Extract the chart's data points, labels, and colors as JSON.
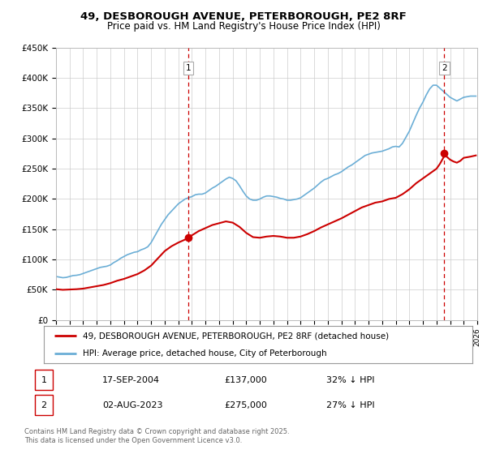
{
  "title": "49, DESBOROUGH AVENUE, PETERBOROUGH, PE2 8RF",
  "subtitle": "Price paid vs. HM Land Registry's House Price Index (HPI)",
  "title_fontsize": 9.5,
  "subtitle_fontsize": 8.5,
  "xlim_start": 1995.0,
  "xlim_end": 2026.0,
  "ylim_min": 0,
  "ylim_max": 450000,
  "yticks": [
    0,
    50000,
    100000,
    150000,
    200000,
    250000,
    300000,
    350000,
    400000,
    450000
  ],
  "ytick_labels": [
    "£0",
    "£50K",
    "£100K",
    "£150K",
    "£200K",
    "£250K",
    "£300K",
    "£350K",
    "£400K",
    "£450K"
  ],
  "hpi_color": "#6baed6",
  "price_color": "#cc0000",
  "vline_color": "#cc0000",
  "grid_color": "#cccccc",
  "background_color": "#ffffff",
  "sale1_date": 2004.72,
  "sale1_price": 137000,
  "sale1_label": "1",
  "sale2_date": 2023.58,
  "sale2_price": 275000,
  "sale2_label": "2",
  "legend_label_price": "49, DESBOROUGH AVENUE, PETERBOROUGH, PE2 8RF (detached house)",
  "legend_label_hpi": "HPI: Average price, detached house, City of Peterborough",
  "table_row1": [
    "1",
    "17-SEP-2004",
    "£137,000",
    "32% ↓ HPI"
  ],
  "table_row2": [
    "2",
    "02-AUG-2023",
    "£275,000",
    "27% ↓ HPI"
  ],
  "footnote": "Contains HM Land Registry data © Crown copyright and database right 2025.\nThis data is licensed under the Open Government Licence v3.0.",
  "hpi_data": [
    [
      1995.0,
      72000
    ],
    [
      1995.25,
      71000
    ],
    [
      1995.5,
      70000
    ],
    [
      1995.75,
      70500
    ],
    [
      1996.0,
      72000
    ],
    [
      1996.25,
      73500
    ],
    [
      1996.5,
      74000
    ],
    [
      1996.75,
      75000
    ],
    [
      1997.0,
      77000
    ],
    [
      1997.25,
      79000
    ],
    [
      1997.5,
      81000
    ],
    [
      1997.75,
      83000
    ],
    [
      1998.0,
      85000
    ],
    [
      1998.25,
      87000
    ],
    [
      1998.5,
      88000
    ],
    [
      1998.75,
      89000
    ],
    [
      1999.0,
      91000
    ],
    [
      1999.25,
      95000
    ],
    [
      1999.5,
      98000
    ],
    [
      1999.75,
      102000
    ],
    [
      2000.0,
      105000
    ],
    [
      2000.25,
      108000
    ],
    [
      2000.5,
      110000
    ],
    [
      2000.75,
      112000
    ],
    [
      2001.0,
      113000
    ],
    [
      2001.25,
      116000
    ],
    [
      2001.5,
      118000
    ],
    [
      2001.75,
      121000
    ],
    [
      2002.0,
      128000
    ],
    [
      2002.25,
      138000
    ],
    [
      2002.5,
      148000
    ],
    [
      2002.75,
      158000
    ],
    [
      2003.0,
      166000
    ],
    [
      2003.25,
      174000
    ],
    [
      2003.5,
      180000
    ],
    [
      2003.75,
      186000
    ],
    [
      2004.0,
      192000
    ],
    [
      2004.25,
      196000
    ],
    [
      2004.5,
      200000
    ],
    [
      2004.75,
      202000
    ],
    [
      2005.0,
      204000
    ],
    [
      2005.25,
      207000
    ],
    [
      2005.5,
      208000
    ],
    [
      2005.75,
      208000
    ],
    [
      2006.0,
      210000
    ],
    [
      2006.25,
      214000
    ],
    [
      2006.5,
      218000
    ],
    [
      2006.75,
      221000
    ],
    [
      2007.0,
      225000
    ],
    [
      2007.25,
      229000
    ],
    [
      2007.5,
      233000
    ],
    [
      2007.75,
      236000
    ],
    [
      2008.0,
      234000
    ],
    [
      2008.25,
      230000
    ],
    [
      2008.5,
      222000
    ],
    [
      2008.75,
      213000
    ],
    [
      2009.0,
      205000
    ],
    [
      2009.25,
      200000
    ],
    [
      2009.5,
      198000
    ],
    [
      2009.75,
      198000
    ],
    [
      2010.0,
      200000
    ],
    [
      2010.25,
      203000
    ],
    [
      2010.5,
      205000
    ],
    [
      2010.75,
      205000
    ],
    [
      2011.0,
      204000
    ],
    [
      2011.25,
      203000
    ],
    [
      2011.5,
      201000
    ],
    [
      2011.75,
      200000
    ],
    [
      2012.0,
      198000
    ],
    [
      2012.25,
      198000
    ],
    [
      2012.5,
      199000
    ],
    [
      2012.75,
      200000
    ],
    [
      2013.0,
      202000
    ],
    [
      2013.25,
      206000
    ],
    [
      2013.5,
      210000
    ],
    [
      2013.75,
      214000
    ],
    [
      2014.0,
      218000
    ],
    [
      2014.25,
      223000
    ],
    [
      2014.5,
      228000
    ],
    [
      2014.75,
      232000
    ],
    [
      2015.0,
      234000
    ],
    [
      2015.25,
      237000
    ],
    [
      2015.5,
      240000
    ],
    [
      2015.75,
      242000
    ],
    [
      2016.0,
      245000
    ],
    [
      2016.25,
      249000
    ],
    [
      2016.5,
      253000
    ],
    [
      2016.75,
      256000
    ],
    [
      2017.0,
      260000
    ],
    [
      2017.25,
      264000
    ],
    [
      2017.5,
      268000
    ],
    [
      2017.75,
      272000
    ],
    [
      2018.0,
      274000
    ],
    [
      2018.25,
      276000
    ],
    [
      2018.5,
      277000
    ],
    [
      2018.75,
      278000
    ],
    [
      2019.0,
      279000
    ],
    [
      2019.25,
      281000
    ],
    [
      2019.5,
      283000
    ],
    [
      2019.75,
      286000
    ],
    [
      2020.0,
      287000
    ],
    [
      2020.25,
      286000
    ],
    [
      2020.5,
      292000
    ],
    [
      2020.75,
      302000
    ],
    [
      2021.0,
      312000
    ],
    [
      2021.25,
      325000
    ],
    [
      2021.5,
      338000
    ],
    [
      2021.75,
      350000
    ],
    [
      2022.0,
      360000
    ],
    [
      2022.25,
      372000
    ],
    [
      2022.5,
      382000
    ],
    [
      2022.75,
      388000
    ],
    [
      2023.0,
      388000
    ],
    [
      2023.25,
      383000
    ],
    [
      2023.5,
      378000
    ],
    [
      2023.75,
      373000
    ],
    [
      2024.0,
      368000
    ],
    [
      2024.25,
      365000
    ],
    [
      2024.5,
      362000
    ],
    [
      2024.75,
      365000
    ],
    [
      2025.0,
      368000
    ],
    [
      2025.5,
      370000
    ],
    [
      2025.9,
      370000
    ]
  ],
  "price_data": [
    [
      1995.0,
      51000
    ],
    [
      1995.5,
      50000
    ],
    [
      1996.0,
      50500
    ],
    [
      1996.5,
      51000
    ],
    [
      1997.0,
      52000
    ],
    [
      1997.5,
      54000
    ],
    [
      1998.0,
      56000
    ],
    [
      1998.5,
      58000
    ],
    [
      1999.0,
      61000
    ],
    [
      1999.5,
      65000
    ],
    [
      2000.0,
      68000
    ],
    [
      2000.5,
      72000
    ],
    [
      2001.0,
      76000
    ],
    [
      2001.5,
      82000
    ],
    [
      2002.0,
      90000
    ],
    [
      2002.5,
      102000
    ],
    [
      2003.0,
      114000
    ],
    [
      2003.5,
      122000
    ],
    [
      2004.0,
      128000
    ],
    [
      2004.5,
      133000
    ],
    [
      2004.72,
      137000
    ],
    [
      2005.0,
      140000
    ],
    [
      2005.5,
      147000
    ],
    [
      2006.0,
      152000
    ],
    [
      2006.5,
      157000
    ],
    [
      2007.0,
      160000
    ],
    [
      2007.5,
      163000
    ],
    [
      2008.0,
      161000
    ],
    [
      2008.5,
      154000
    ],
    [
      2009.0,
      144000
    ],
    [
      2009.5,
      137000
    ],
    [
      2010.0,
      136000
    ],
    [
      2010.5,
      138000
    ],
    [
      2011.0,
      139000
    ],
    [
      2011.5,
      138000
    ],
    [
      2012.0,
      136000
    ],
    [
      2012.5,
      136000
    ],
    [
      2013.0,
      138000
    ],
    [
      2013.5,
      142000
    ],
    [
      2014.0,
      147000
    ],
    [
      2014.5,
      153000
    ],
    [
      2015.0,
      158000
    ],
    [
      2015.5,
      163000
    ],
    [
      2016.0,
      168000
    ],
    [
      2016.5,
      174000
    ],
    [
      2017.0,
      180000
    ],
    [
      2017.5,
      186000
    ],
    [
      2018.0,
      190000
    ],
    [
      2018.5,
      194000
    ],
    [
      2019.0,
      196000
    ],
    [
      2019.5,
      200000
    ],
    [
      2020.0,
      202000
    ],
    [
      2020.5,
      208000
    ],
    [
      2021.0,
      216000
    ],
    [
      2021.5,
      226000
    ],
    [
      2022.0,
      234000
    ],
    [
      2022.5,
      242000
    ],
    [
      2023.0,
      250000
    ],
    [
      2023.25,
      258000
    ],
    [
      2023.5,
      268000
    ],
    [
      2023.58,
      275000
    ],
    [
      2023.75,
      270000
    ],
    [
      2024.0,
      265000
    ],
    [
      2024.25,
      262000
    ],
    [
      2024.5,
      260000
    ],
    [
      2024.75,
      263000
    ],
    [
      2025.0,
      268000
    ],
    [
      2025.5,
      270000
    ],
    [
      2025.9,
      272000
    ]
  ]
}
